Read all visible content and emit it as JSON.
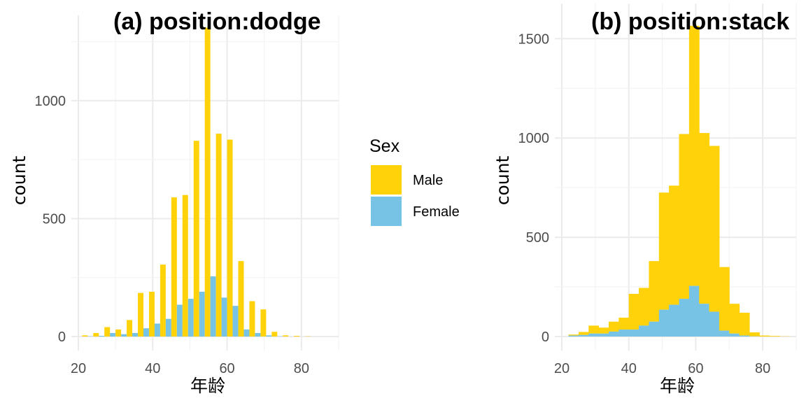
{
  "chart_data": [
    {
      "type": "bar",
      "position": "dodge",
      "title": "(a) position:dodge",
      "xlabel": "年龄",
      "ylabel": "count",
      "xlim": [
        20,
        90
      ],
      "ylim": [
        0,
        1300
      ],
      "x_ticks": [
        20,
        40,
        60,
        80
      ],
      "y_ticks": [
        0,
        500,
        1000
      ],
      "bin_width": 3,
      "bin_centers": [
        22.5,
        25.5,
        28.5,
        31.5,
        34.5,
        37.5,
        40.5,
        43.5,
        46.5,
        49.5,
        52.5,
        55.5,
        58.5,
        61.5,
        64.5,
        67.5,
        70.5,
        73.5,
        76.5,
        79.5,
        82.5,
        85.5
      ],
      "series": [
        {
          "name": "Male",
          "color": "#FFD209",
          "values": [
            5,
            15,
            40,
            30,
            70,
            185,
            190,
            305,
            590,
            600,
            830,
            1310,
            860,
            835,
            320,
            150,
            115,
            20,
            5,
            3,
            1,
            0
          ]
        },
        {
          "name": "Female",
          "color": "#77C3E5",
          "values": [
            1,
            3,
            15,
            10,
            15,
            35,
            55,
            75,
            135,
            160,
            190,
            255,
            165,
            130,
            30,
            15,
            5,
            1,
            0,
            0,
            0,
            0
          ]
        }
      ],
      "grid": true
    },
    {
      "type": "bar",
      "position": "stack",
      "title": "(b) position:stack",
      "xlabel": "年龄",
      "ylabel": "count",
      "xlim": [
        20,
        90
      ],
      "ylim": [
        0,
        1570
      ],
      "x_ticks": [
        20,
        40,
        60,
        80
      ],
      "y_ticks": [
        0,
        500,
        1000,
        1500
      ],
      "bin_width": 3,
      "bin_centers": [
        23.5,
        26.5,
        29.5,
        32.5,
        35.5,
        38.5,
        41.5,
        44.5,
        47.5,
        50.5,
        53.5,
        56.5,
        59.5,
        62.5,
        65.5,
        68.5,
        71.5,
        74.5,
        77.5,
        80.5,
        83.5,
        86.5
      ],
      "series": [
        {
          "name": "Male",
          "color": "#FFD209",
          "values": [
            5,
            15,
            40,
            30,
            50,
            60,
            180,
            190,
            305,
            590,
            600,
            830,
            1310,
            860,
            835,
            320,
            150,
            115,
            20,
            5,
            3,
            1
          ]
        },
        {
          "name": "Female",
          "color": "#77C3E5",
          "values": [
            5,
            8,
            15,
            15,
            25,
            35,
            35,
            55,
            75,
            135,
            160,
            190,
            255,
            165,
            125,
            30,
            15,
            5,
            1,
            0,
            0,
            0
          ]
        }
      ],
      "grid": true
    }
  ],
  "legend": {
    "title": "Sex",
    "items": [
      {
        "label": "Male",
        "color": "#FFD209"
      },
      {
        "label": "Female",
        "color": "#77C3E5"
      }
    ]
  }
}
